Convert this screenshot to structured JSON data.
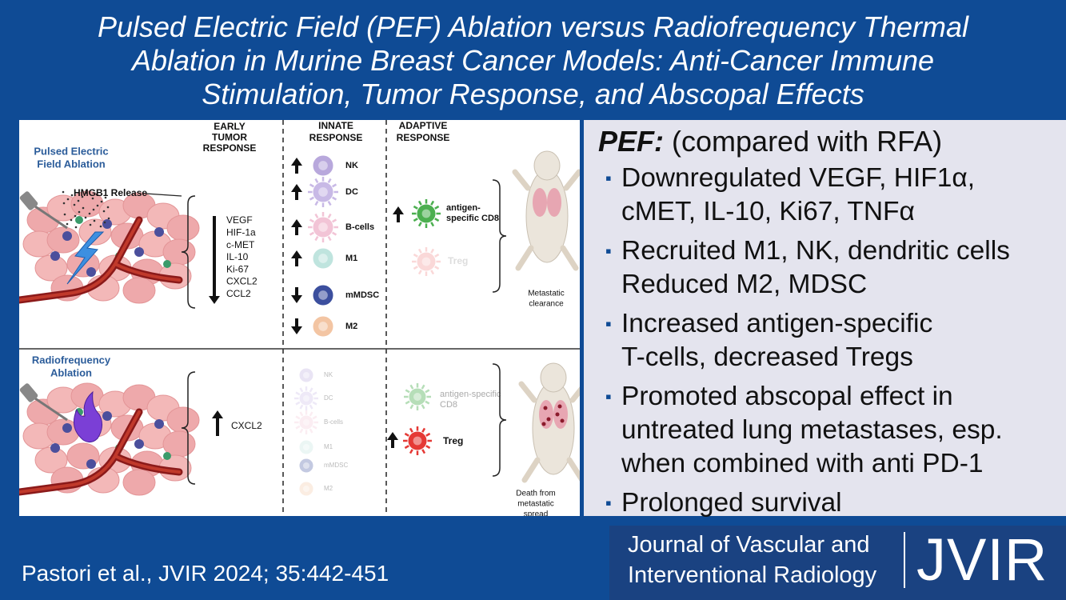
{
  "header": {
    "title": [
      "Pulsed Electric Field (PEF) Ablation versus Radiofrequency Thermal",
      "Ablation in Murine Breast Cancer Models: Anti-Cancer Immune",
      "Stimulation, Tumor Response, and Abscopal Effects"
    ]
  },
  "figure": {
    "columns": {
      "early": [
        "EARLY",
        "TUMOR",
        "RESPONSE"
      ],
      "innate": [
        "INNATE",
        "RESPONSE"
      ],
      "adaptive": [
        "ADAPTIVE",
        "RESPONSE"
      ]
    },
    "pef": {
      "label": [
        "Pulsed Electric",
        "Field Ablation"
      ],
      "release": "HMGB1 Release",
      "early_markers": [
        "VEGF",
        "HIF-1a",
        "c-MET",
        "IL-10",
        "Ki-67",
        "CXCL2",
        "CCL2"
      ],
      "innate_cells": [
        "NK",
        "DC",
        "B-cells",
        "M1",
        "mMDSC",
        "M2"
      ],
      "adaptive": {
        "cd8": [
          "antigen-",
          "specific CD8"
        ],
        "treg": "Treg"
      },
      "outcome": [
        "Metastatic",
        "clearance"
      ]
    },
    "rfa": {
      "label": [
        "Radiofrequency",
        "Ablation"
      ],
      "early_markers": [
        "CXCL2"
      ],
      "innate_cells": [
        "NK",
        "DC",
        "B-cells",
        "M1",
        "mMDSC",
        "M2"
      ],
      "adaptive": {
        "cd8": [
          "antigen-specific",
          "CD8"
        ],
        "treg": "Treg"
      },
      "outcome": [
        "Death from",
        "metastatic",
        "spread"
      ]
    }
  },
  "summary": {
    "heading": "PEF:",
    "subheading": "(compared with RFA)",
    "bullets": [
      [
        "Downregulated VEGF, HIF1α,",
        "cMET, IL-10, Ki67, TNFα"
      ],
      [
        "Recruited M1, NK, dendritic cells",
        "Reduced M2, MDSC"
      ],
      [
        "Increased antigen-specific",
        "T-cells, decreased Tregs"
      ],
      [
        "Promoted abscopal effect in",
        "untreated lung metastases, esp.",
        "when combined with anti PD-1"
      ],
      [
        "Prolonged survival"
      ]
    ]
  },
  "footer": {
    "citation": "Pastori et al., JVIR 2024; 35:442-451",
    "journal": [
      "Journal of Vascular and",
      "Interventional Radiology"
    ],
    "logo": "JVIR"
  }
}
